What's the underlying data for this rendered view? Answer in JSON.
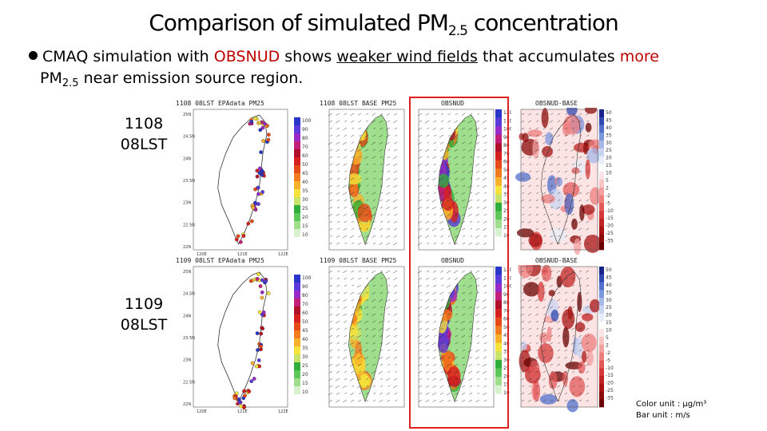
{
  "slide": {
    "title_main": "Comparison of simulated PM",
    "title_sub": "2.5",
    "title_end": " concentration",
    "bullet": {
      "part1": "CMAQ simulation with ",
      "highlight": "OBSNUD",
      "part2": " shows ",
      "underlined": "weaker wind fields",
      "part3": " that accumulates ",
      "more": "more",
      "line2_pm": "PM",
      "line2_sub": "2.5",
      "line2_rest": " near emission source region."
    },
    "cases": [
      {
        "line1": "1108",
        "line2": "08LST"
      },
      {
        "line1": "1109",
        "line2": "08LST"
      }
    ],
    "panel_headers": {
      "obs_1108": "1108 08LST EPAdata PM25",
      "base_1108": "1108 08LST BASE PM25",
      "obsnud_1108": "OBSNUD",
      "diff_1108": "OBSNUD-BASE",
      "obs_1109": "1109 08LST EPAdata PM25",
      "base_1109": "1109 08LST BASE PM25",
      "obsnud_1109": "OBSNUD",
      "diff_1109": "OBSNUD-BASE"
    },
    "concentration_ticks": [
      "120",
      "110",
      "100",
      "90",
      "80",
      "70",
      "60",
      "50",
      "45",
      "40",
      "35",
      "30",
      "25",
      "20",
      "15",
      "10"
    ],
    "difference_ticks": [
      "50",
      "45",
      "40",
      "35",
      "30",
      "25",
      "20",
      "15",
      "10",
      "5",
      "2",
      "-2",
      "-5",
      "-10",
      "-15",
      "-20",
      "-25",
      "-35"
    ],
    "lat_ticks": [
      "25N",
      "24.5N",
      "24N",
      "23.5N",
      "23N",
      "22.5N",
      "22N"
    ],
    "lon_ticks": [
      "120E",
      "121E",
      "122E"
    ],
    "units_line1": "Color unit : μg/m³",
    "units_line2": "Bar unit : m/s"
  },
  "colors": {
    "accent_red": "#c00000",
    "highlight_box": "#e02020",
    "conc_scale": [
      "#ffffff",
      "#d8f2d0",
      "#9ede8c",
      "#5cc85a",
      "#2fae3c",
      "#c8e26a",
      "#f5e23a",
      "#f7b02a",
      "#f27a1f",
      "#e64a19",
      "#d61f1f",
      "#b0102a",
      "#c0207a",
      "#9a2ac8",
      "#5a3ad8",
      "#2a36c8"
    ],
    "diff_scale": [
      "#6a0000",
      "#8c0a0a",
      "#a81414",
      "#c02424",
      "#d43a3a",
      "#e25a5a",
      "#ec7e7e",
      "#f2a0a0",
      "#f8c4c4",
      "#fde4e4",
      "#ffffff",
      "#e6ecf8",
      "#c8d4f0",
      "#a6b8e8",
      "#7c96dc",
      "#5270cc",
      "#3048b0",
      "#18248a"
    ]
  }
}
